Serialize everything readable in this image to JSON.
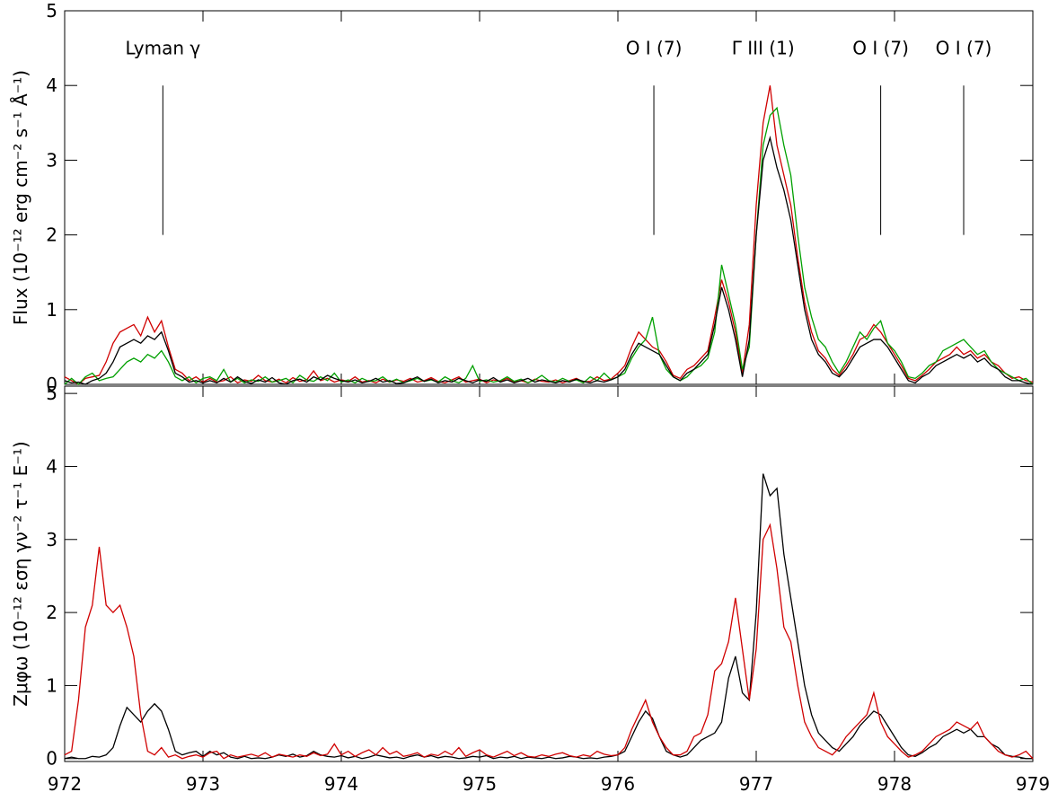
{
  "chart_data": [
    {
      "type": "line",
      "ylabel": "Flux  (10⁻¹² erg cm⁻² s⁻¹ Å⁻¹)",
      "xlim": [
        972,
        979
      ],
      "ylim": [
        0,
        5
      ],
      "xticks": [
        972,
        973,
        974,
        975,
        976,
        977,
        978,
        979
      ],
      "xticklabels": false,
      "yticks": [
        0,
        1,
        2,
        3,
        4,
        5
      ],
      "x": [
        972,
        972.05,
        972.1,
        972.15,
        972.2,
        972.25,
        972.3,
        972.35,
        972.4,
        972.45,
        972.5,
        972.55,
        972.6,
        972.65,
        972.7,
        972.75,
        972.8,
        972.85,
        972.9,
        972.95,
        973,
        973.05,
        973.1,
        973.15,
        973.2,
        973.25,
        973.3,
        973.35,
        973.4,
        973.45,
        973.5,
        973.55,
        973.6,
        973.65,
        973.7,
        973.75,
        973.8,
        973.85,
        973.9,
        973.95,
        974,
        974.05,
        974.1,
        974.15,
        974.2,
        974.25,
        974.3,
        974.35,
        974.4,
        974.45,
        974.5,
        974.55,
        974.6,
        974.65,
        974.7,
        974.75,
        974.8,
        974.85,
        974.9,
        974.95,
        975,
        975.05,
        975.1,
        975.15,
        975.2,
        975.25,
        975.3,
        975.35,
        975.4,
        975.45,
        975.5,
        975.55,
        975.6,
        975.65,
        975.7,
        975.75,
        975.8,
        975.85,
        975.9,
        975.95,
        976,
        976.05,
        976.1,
        976.15,
        976.2,
        976.25,
        976.3,
        976.35,
        976.4,
        976.45,
        976.5,
        976.55,
        976.6,
        976.65,
        976.7,
        976.75,
        976.8,
        976.85,
        976.9,
        976.95,
        977,
        977.05,
        977.1,
        977.15,
        977.2,
        977.25,
        977.3,
        977.35,
        977.4,
        977.45,
        977.5,
        977.55,
        977.6,
        977.65,
        977.7,
        977.75,
        977.8,
        977.85,
        977.9,
        977.95,
        978,
        978.05,
        978.1,
        978.15,
        978.2,
        978.25,
        978.3,
        978.35,
        978.4,
        978.45,
        978.5,
        978.55,
        978.6,
        978.65,
        978.7,
        978.75,
        978.8,
        978.85,
        978.9,
        978.95,
        979
      ],
      "series": [
        {
          "color": "#d00000",
          "values": [
            0.1,
            0.05,
            0.0,
            0.08,
            0.1,
            0.12,
            0.3,
            0.55,
            0.7,
            0.75,
            0.8,
            0.65,
            0.9,
            0.7,
            0.85,
            0.5,
            0.2,
            0.15,
            0.05,
            0.1,
            0.03,
            0.08,
            0.03,
            0.05,
            0.1,
            0.02,
            0.06,
            0.04,
            0.12,
            0.05,
            0.03,
            0.07,
            0.02,
            0.09,
            0.04,
            0.06,
            0.18,
            0.05,
            0.08,
            0.03,
            0.06,
            0.04,
            0.1,
            0.03,
            0.05,
            0.02,
            0.07,
            0.03,
            0.06,
            0.04,
            0.08,
            0.03,
            0.05,
            0.09,
            0.04,
            0.02,
            0.06,
            0.1,
            0.03,
            0.05,
            0.07,
            0.02,
            0.06,
            0.04,
            0.08,
            0.03,
            0.05,
            0.02,
            0.07,
            0.04,
            0.03,
            0.06,
            0.02,
            0.05,
            0.08,
            0.03,
            0.04,
            0.1,
            0.05,
            0.07,
            0.15,
            0.25,
            0.5,
            0.7,
            0.6,
            0.5,
            0.45,
            0.3,
            0.12,
            0.08,
            0.2,
            0.25,
            0.35,
            0.45,
            0.9,
            1.4,
            1.1,
            0.7,
            0.15,
            0.8,
            2.4,
            3.5,
            4.0,
            3.2,
            2.8,
            2.4,
            1.7,
            1.1,
            0.7,
            0.45,
            0.35,
            0.2,
            0.12,
            0.25,
            0.4,
            0.6,
            0.65,
            0.8,
            0.7,
            0.55,
            0.4,
            0.25,
            0.08,
            0.05,
            0.12,
            0.2,
            0.3,
            0.35,
            0.4,
            0.5,
            0.4,
            0.45,
            0.35,
            0.4,
            0.3,
            0.25,
            0.15,
            0.08,
            0.1,
            0.05,
            0.03
          ]
        },
        {
          "color": "#00a000",
          "values": [
            0.0,
            0.08,
            0.0,
            0.1,
            0.15,
            0.05,
            0.08,
            0.1,
            0.2,
            0.3,
            0.35,
            0.3,
            0.4,
            0.35,
            0.45,
            0.3,
            0.1,
            0.05,
            0.1,
            0.02,
            0.08,
            0.1,
            0.05,
            0.2,
            0.03,
            0.08,
            0.02,
            0.06,
            0.04,
            0.1,
            0.03,
            0.05,
            0.08,
            0.02,
            0.12,
            0.06,
            0.04,
            0.1,
            0.05,
            0.15,
            0.03,
            0.06,
            0.02,
            0.08,
            0.04,
            0.05,
            0.1,
            0.03,
            0.07,
            0.02,
            0.05,
            0.08,
            0.04,
            0.06,
            0.03,
            0.1,
            0.05,
            0.02,
            0.08,
            0.25,
            0.04,
            0.06,
            0.03,
            0.05,
            0.1,
            0.04,
            0.07,
            0.02,
            0.06,
            0.12,
            0.05,
            0.03,
            0.08,
            0.04,
            0.06,
            0.02,
            0.1,
            0.05,
            0.15,
            0.06,
            0.1,
            0.15,
            0.35,
            0.5,
            0.6,
            0.9,
            0.4,
            0.2,
            0.1,
            0.05,
            0.1,
            0.2,
            0.25,
            0.35,
            0.7,
            1.6,
            1.2,
            0.8,
            0.2,
            0.5,
            2.0,
            3.2,
            3.6,
            3.7,
            3.2,
            2.8,
            2.0,
            1.3,
            0.9,
            0.6,
            0.5,
            0.3,
            0.15,
            0.3,
            0.5,
            0.7,
            0.6,
            0.75,
            0.85,
            0.55,
            0.45,
            0.3,
            0.1,
            0.08,
            0.15,
            0.25,
            0.3,
            0.45,
            0.5,
            0.55,
            0.6,
            0.5,
            0.4,
            0.45,
            0.3,
            0.2,
            0.15,
            0.1,
            0.05,
            0.08,
            0.0
          ]
        },
        {
          "color": "#000000",
          "values": [
            0.05,
            0.02,
            0.03,
            0.0,
            0.05,
            0.08,
            0.15,
            0.3,
            0.5,
            0.55,
            0.6,
            0.55,
            0.65,
            0.6,
            0.7,
            0.45,
            0.15,
            0.1,
            0.03,
            0.05,
            0.02,
            0.05,
            0.02,
            0.08,
            0.03,
            0.1,
            0.04,
            0.01,
            0.06,
            0.03,
            0.09,
            0.02,
            0.0,
            0.05,
            0.07,
            0.03,
            0.1,
            0.06,
            0.12,
            0.08,
            0.05,
            0.03,
            0.06,
            0.02,
            0.04,
            0.08,
            0.03,
            0.05,
            0.01,
            0.02,
            0.06,
            0.1,
            0.04,
            0.07,
            0.02,
            0.05,
            0.03,
            0.08,
            0.05,
            0.02,
            0.06,
            0.04,
            0.09,
            0.03,
            0.06,
            0.02,
            0.05,
            0.08,
            0.03,
            0.06,
            0.04,
            0.02,
            0.05,
            0.03,
            0.07,
            0.04,
            0.02,
            0.05,
            0.03,
            0.06,
            0.1,
            0.2,
            0.4,
            0.55,
            0.5,
            0.45,
            0.4,
            0.25,
            0.1,
            0.05,
            0.15,
            0.2,
            0.3,
            0.4,
            0.8,
            1.3,
            1.0,
            0.6,
            0.1,
            0.6,
            2.0,
            3.0,
            3.3,
            2.9,
            2.6,
            2.2,
            1.6,
            1.0,
            0.6,
            0.4,
            0.3,
            0.15,
            0.1,
            0.2,
            0.35,
            0.5,
            0.55,
            0.6,
            0.6,
            0.5,
            0.35,
            0.2,
            0.05,
            0.02,
            0.1,
            0.15,
            0.25,
            0.3,
            0.35,
            0.4,
            0.35,
            0.4,
            0.3,
            0.35,
            0.25,
            0.2,
            0.1,
            0.05,
            0.05,
            0.02,
            0.0
          ]
        }
      ],
      "annotations": [
        {
          "text": "Lyman γ",
          "x": 972.71,
          "y": 4.5
        },
        {
          "text": "O I (7)",
          "x": 976.26,
          "y": 4.5
        },
        {
          "text": "Γ III (1)",
          "x": 977.05,
          "y": 4.5
        },
        {
          "text": "O I (7)",
          "x": 977.9,
          "y": 4.5
        },
        {
          "text": "O I (7)",
          "x": 978.5,
          "y": 4.5
        }
      ],
      "markers": [
        {
          "x": 972.71,
          "y1": 2,
          "y2": 4
        },
        {
          "x": 976.26,
          "y1": 2,
          "y2": 4
        },
        {
          "x": 977.9,
          "y1": 2,
          "y2": 4
        },
        {
          "x": 978.5,
          "y1": 2,
          "y2": 4
        }
      ]
    },
    {
      "type": "line",
      "ylabel": "Zμφω  (10⁻¹² εση γν⁻² τ⁻¹ Ε⁻¹)",
      "xlim": [
        972,
        979
      ],
      "ylim": [
        -0.04,
        5.1
      ],
      "xticks": [
        972,
        973,
        974,
        975,
        976,
        977,
        978,
        979
      ],
      "xticklabels": true,
      "yticks": [
        0,
        1,
        2,
        3,
        4,
        5
      ],
      "x": [
        972,
        972.05,
        972.1,
        972.15,
        972.2,
        972.25,
        972.3,
        972.35,
        972.4,
        972.45,
        972.5,
        972.55,
        972.6,
        972.65,
        972.7,
        972.75,
        972.8,
        972.85,
        972.9,
        972.95,
        973,
        973.05,
        973.1,
        973.15,
        973.2,
        973.25,
        973.3,
        973.35,
        973.4,
        973.45,
        973.5,
        973.55,
        973.6,
        973.65,
        973.7,
        973.75,
        973.8,
        973.85,
        973.9,
        973.95,
        974,
        974.05,
        974.1,
        974.15,
        974.2,
        974.25,
        974.3,
        974.35,
        974.4,
        974.45,
        974.5,
        974.55,
        974.6,
        974.65,
        974.7,
        974.75,
        974.8,
        974.85,
        974.9,
        974.95,
        975,
        975.05,
        975.1,
        975.15,
        975.2,
        975.25,
        975.3,
        975.35,
        975.4,
        975.45,
        975.5,
        975.55,
        975.6,
        975.65,
        975.7,
        975.75,
        975.8,
        975.85,
        975.9,
        975.95,
        976,
        976.05,
        976.1,
        976.15,
        976.2,
        976.25,
        976.3,
        976.35,
        976.4,
        976.45,
        976.5,
        976.55,
        976.6,
        976.65,
        976.7,
        976.75,
        976.8,
        976.85,
        976.9,
        976.95,
        977,
        977.05,
        977.1,
        977.15,
        977.2,
        977.25,
        977.3,
        977.35,
        977.4,
        977.45,
        977.5,
        977.55,
        977.6,
        977.65,
        977.7,
        977.75,
        977.8,
        977.85,
        977.9,
        977.95,
        978,
        978.05,
        978.1,
        978.15,
        978.2,
        978.25,
        978.3,
        978.35,
        978.4,
        978.45,
        978.5,
        978.55,
        978.6,
        978.65,
        978.7,
        978.75,
        978.8,
        978.85,
        978.9,
        978.95,
        979
      ],
      "series": [
        {
          "color": "#000000",
          "values": [
            0.0,
            0.02,
            0.0,
            0.0,
            0.03,
            0.02,
            0.05,
            0.15,
            0.45,
            0.7,
            0.6,
            0.5,
            0.65,
            0.75,
            0.65,
            0.4,
            0.1,
            0.05,
            0.08,
            0.1,
            0.03,
            0.1,
            0.05,
            0.08,
            0.02,
            0.0,
            0.03,
            0.0,
            0.01,
            0.0,
            0.02,
            0.05,
            0.03,
            0.06,
            0.02,
            0.04,
            0.1,
            0.05,
            0.03,
            0.02,
            0.04,
            0.01,
            0.03,
            0.0,
            0.02,
            0.05,
            0.03,
            0.01,
            0.02,
            0.0,
            0.03,
            0.05,
            0.02,
            0.04,
            0.01,
            0.03,
            0.02,
            0.0,
            0.01,
            0.03,
            0.02,
            0.04,
            0.0,
            0.02,
            0.01,
            0.03,
            0.0,
            0.02,
            0.01,
            0.0,
            0.02,
            0.0,
            0.01,
            0.03,
            0.02,
            0.0,
            0.01,
            0.0,
            0.02,
            0.03,
            0.05,
            0.1,
            0.3,
            0.5,
            0.65,
            0.55,
            0.3,
            0.1,
            0.05,
            0.02,
            0.05,
            0.15,
            0.25,
            0.3,
            0.35,
            0.5,
            1.1,
            1.4,
            0.9,
            0.8,
            2.0,
            3.9,
            3.6,
            3.7,
            2.8,
            2.2,
            1.6,
            1.0,
            0.6,
            0.35,
            0.25,
            0.15,
            0.1,
            0.2,
            0.3,
            0.45,
            0.55,
            0.65,
            0.6,
            0.45,
            0.3,
            0.15,
            0.05,
            0.03,
            0.08,
            0.15,
            0.2,
            0.3,
            0.35,
            0.4,
            0.35,
            0.4,
            0.3,
            0.3,
            0.2,
            0.15,
            0.05,
            0.03,
            0.02,
            0.0,
            0.0
          ]
        },
        {
          "color": "#d00000",
          "values": [
            0.05,
            0.1,
            0.8,
            1.8,
            2.1,
            2.9,
            2.1,
            2.0,
            2.1,
            1.8,
            1.4,
            0.6,
            0.1,
            0.05,
            0.15,
            0.02,
            0.05,
            0.0,
            0.03,
            0.05,
            0.02,
            0.08,
            0.1,
            0.0,
            0.05,
            0.02,
            0.04,
            0.06,
            0.03,
            0.08,
            0.02,
            0.06,
            0.04,
            0.02,
            0.05,
            0.03,
            0.08,
            0.04,
            0.06,
            0.2,
            0.05,
            0.1,
            0.03,
            0.08,
            0.12,
            0.05,
            0.15,
            0.06,
            0.1,
            0.03,
            0.05,
            0.08,
            0.02,
            0.06,
            0.04,
            0.1,
            0.05,
            0.15,
            0.03,
            0.08,
            0.12,
            0.05,
            0.02,
            0.06,
            0.1,
            0.04,
            0.08,
            0.03,
            0.02,
            0.05,
            0.03,
            0.06,
            0.08,
            0.04,
            0.02,
            0.05,
            0.03,
            0.1,
            0.06,
            0.04,
            0.05,
            0.15,
            0.4,
            0.6,
            0.8,
            0.5,
            0.3,
            0.15,
            0.05,
            0.05,
            0.1,
            0.3,
            0.35,
            0.6,
            1.2,
            1.3,
            1.6,
            2.2,
            1.5,
            0.8,
            1.5,
            3.0,
            3.2,
            2.6,
            1.8,
            1.6,
            1.0,
            0.5,
            0.3,
            0.15,
            0.1,
            0.05,
            0.15,
            0.3,
            0.4,
            0.5,
            0.6,
            0.9,
            0.5,
            0.3,
            0.2,
            0.1,
            0.02,
            0.05,
            0.1,
            0.2,
            0.3,
            0.35,
            0.4,
            0.5,
            0.45,
            0.4,
            0.5,
            0.3,
            0.2,
            0.1,
            0.05,
            0.02,
            0.05,
            0.1,
            0.0
          ]
        }
      ]
    }
  ]
}
